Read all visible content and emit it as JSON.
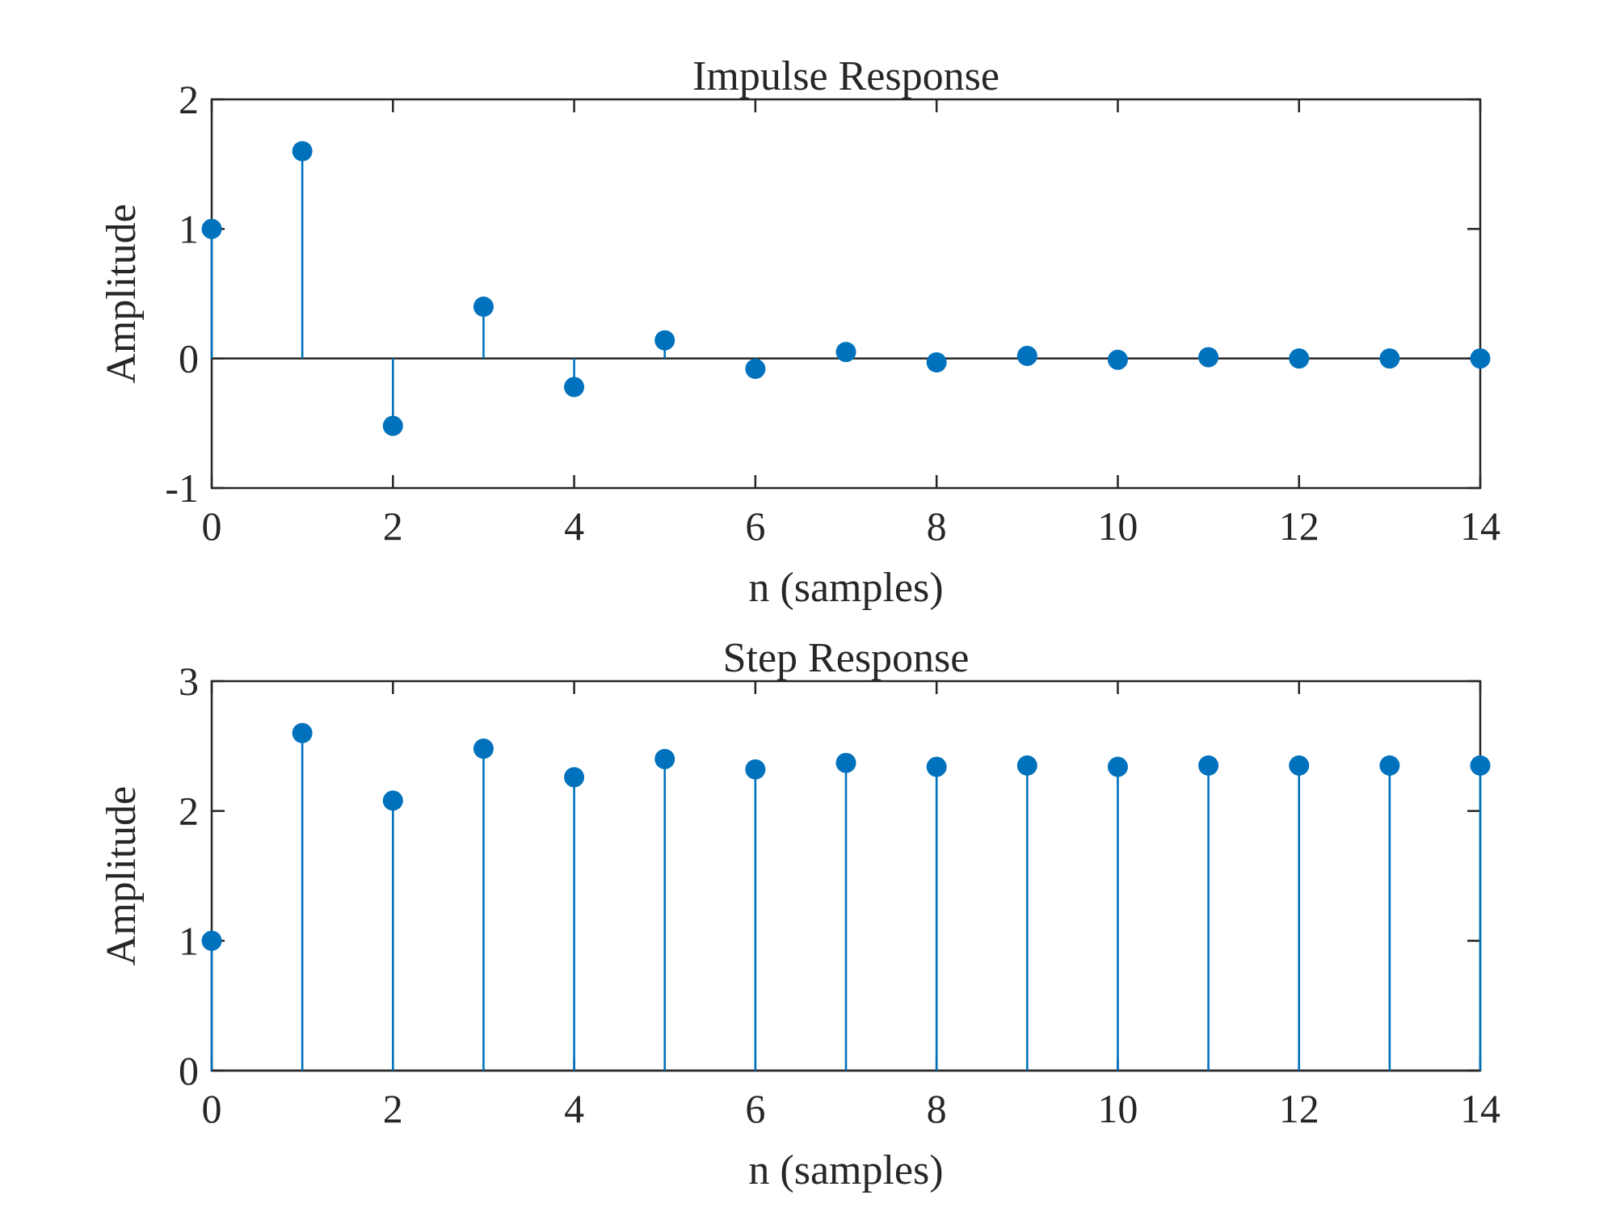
{
  "chart_data": [
    {
      "type": "stem",
      "title": "Impulse Response",
      "xlabel": "n (samples)",
      "ylabel": "Amplitude",
      "xlim": [
        0,
        14
      ],
      "ylim": [
        -1,
        2
      ],
      "xticks": [
        0,
        2,
        4,
        6,
        8,
        10,
        12,
        14
      ],
      "xtick_labels": [
        "0",
        "2",
        "4",
        "6",
        "8",
        "10",
        "12",
        "14"
      ],
      "yticks": [
        -1,
        0,
        1,
        2
      ],
      "ytick_labels": [
        "-1",
        "0",
        "1",
        "2"
      ],
      "grid": false,
      "baseline": 0,
      "x": [
        0,
        1,
        2,
        3,
        4,
        5,
        6,
        7,
        8,
        9,
        10,
        11,
        12,
        13,
        14
      ],
      "values": [
        1.0,
        1.6,
        -0.52,
        0.4,
        -0.22,
        0.14,
        -0.08,
        0.05,
        -0.03,
        0.02,
        -0.01,
        0.01,
        0.0,
        0.0,
        0.0
      ],
      "color": "#0072BD"
    },
    {
      "type": "stem",
      "title": "Step Response",
      "xlabel": "n (samples)",
      "ylabel": "Amplitude",
      "xlim": [
        0,
        14
      ],
      "ylim": [
        0,
        3
      ],
      "xticks": [
        0,
        2,
        4,
        6,
        8,
        10,
        12,
        14
      ],
      "xtick_labels": [
        "0",
        "2",
        "4",
        "6",
        "8",
        "10",
        "12",
        "14"
      ],
      "yticks": [
        0,
        1,
        2,
        3
      ],
      "ytick_labels": [
        "0",
        "1",
        "2",
        "3"
      ],
      "grid": false,
      "baseline": 0,
      "x": [
        0,
        1,
        2,
        3,
        4,
        5,
        6,
        7,
        8,
        9,
        10,
        11,
        12,
        13,
        14
      ],
      "values": [
        1.0,
        2.6,
        2.08,
        2.48,
        2.26,
        2.4,
        2.32,
        2.37,
        2.34,
        2.35,
        2.34,
        2.35,
        2.35,
        2.35,
        2.35
      ],
      "color": "#0072BD"
    }
  ]
}
